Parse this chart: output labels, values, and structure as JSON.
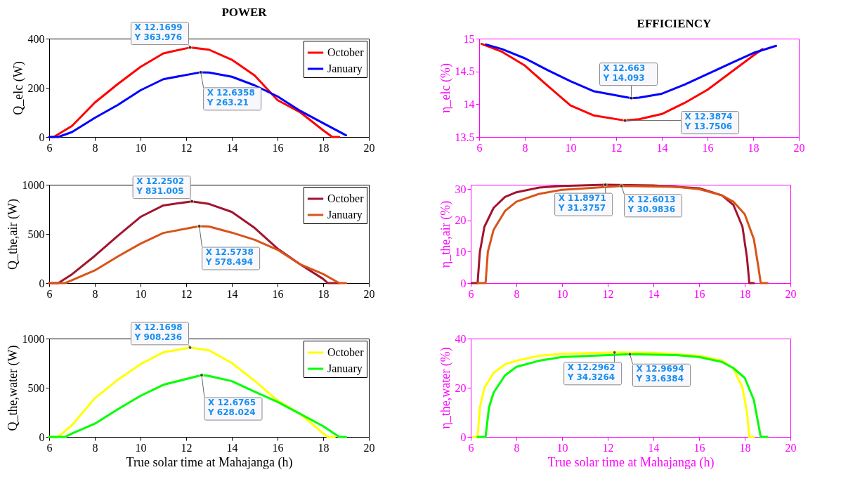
{
  "chart_data": [
    {
      "type": "line",
      "title": "POWER",
      "ylabel": "Q_elc (W)",
      "xlim": [
        6,
        20
      ],
      "xticks": [
        6,
        8,
        10,
        12,
        14,
        16,
        18,
        20
      ],
      "ylim": [
        0,
        400
      ],
      "yticks": [
        0,
        200,
        400
      ],
      "legend": "top right",
      "series": [
        {
          "name": "October",
          "color": "#ff0000",
          "x": [
            6,
            6.2,
            7,
            8,
            9,
            10,
            11,
            12.1699,
            13,
            14,
            15,
            16,
            17,
            18,
            18.4,
            18.7
          ],
          "values": [
            0,
            0,
            45,
            140,
            215,
            285,
            340,
            363.976,
            355,
            314,
            250,
            150,
            100,
            27,
            0,
            0
          ]
        },
        {
          "name": "January",
          "color": "#0000ff",
          "x": [
            6,
            6.4,
            7,
            8,
            9,
            10,
            11,
            12.6358,
            13,
            14,
            15,
            16,
            17,
            18,
            19
          ],
          "values": [
            0,
            0,
            20,
            78,
            130,
            190,
            235,
            263.21,
            262,
            245,
            210,
            165,
            106,
            56,
            7
          ]
        }
      ],
      "annotations": [
        {
          "text": "X 12.1699\nY 363.976",
          "x": 12.1699,
          "y": 363.976
        },
        {
          "text": "X 12.6358\nY 263.21",
          "x": 12.6358,
          "y": 263.21
        }
      ]
    },
    {
      "type": "line",
      "title": "EFFICIENCY",
      "ylabel": "η_elc (%)",
      "xlim": [
        6,
        20
      ],
      "xticks": [
        6,
        8,
        10,
        12,
        14,
        16,
        18,
        20
      ],
      "ylim": [
        13.5,
        15
      ],
      "yticks": [
        13.5,
        14,
        14.5,
        15
      ],
      "series": [
        {
          "color": "#ff0000",
          "x": [
            6.1,
            7,
            8,
            9,
            10,
            11,
            12.3874,
            13,
            14,
            15,
            16,
            17,
            18,
            18.4
          ],
          "values": [
            14.92,
            14.8,
            14.59,
            14.28,
            13.98,
            13.83,
            13.7506,
            13.77,
            13.85,
            14.02,
            14.22,
            14.48,
            14.74,
            14.84
          ]
        },
        {
          "color": "#0000ff",
          "x": [
            6.3,
            7,
            8,
            9,
            10,
            11,
            12.663,
            13,
            14,
            15,
            16,
            17,
            18,
            19
          ],
          "values": [
            14.91,
            14.84,
            14.7,
            14.52,
            14.35,
            14.2,
            14.093,
            14.1,
            14.16,
            14.3,
            14.46,
            14.62,
            14.78,
            14.89
          ]
        }
      ],
      "annotations": [
        {
          "text": "X 12.663\nY 14.093",
          "x": 12.663,
          "y": 14.093
        },
        {
          "text": "X 12.3874\nY 13.7506",
          "x": 12.3874,
          "y": 13.7506
        }
      ]
    },
    {
      "type": "line",
      "ylabel": "Q_the,air (W)",
      "xlim": [
        6,
        20
      ],
      "xticks": [
        6,
        8,
        10,
        12,
        14,
        16,
        18,
        20
      ],
      "ylim": [
        0,
        1000
      ],
      "yticks": [
        0,
        500,
        1000
      ],
      "legend": "top right",
      "series": [
        {
          "name": "October",
          "color": "#a2142f",
          "x": [
            6,
            6.4,
            7,
            8,
            9,
            10,
            11,
            12.2502,
            13,
            14,
            15,
            16,
            17,
            18,
            18.2,
            18.7
          ],
          "values": [
            0,
            0,
            90,
            277,
            480,
            673,
            790,
            831.005,
            805,
            723,
            560,
            351,
            190,
            42,
            0,
            0
          ]
        },
        {
          "name": "January",
          "color": "#d95319",
          "x": [
            6,
            6.7,
            7,
            8,
            9,
            10,
            11,
            12.5738,
            13,
            14,
            15,
            16,
            17,
            18,
            18.7,
            19
          ],
          "values": [
            0,
            0,
            30,
            129,
            270,
            401,
            510,
            578.494,
            575,
            513,
            440,
            339,
            190,
            92,
            0,
            0
          ]
        }
      ],
      "annotations": [
        {
          "text": "X 12.2502\nY 831.005",
          "x": 12.2502,
          "y": 831.005
        },
        {
          "text": "X 12.5738\nY 578.494",
          "x": 12.5738,
          "y": 578.494
        }
      ]
    },
    {
      "type": "line",
      "ylabel": "η_the,air (%)",
      "xlim": [
        6,
        20
      ],
      "xticks": [
        6,
        8,
        10,
        12,
        14,
        16,
        18,
        20
      ],
      "ylim": [
        0,
        31.4
      ],
      "yticks": [
        0,
        10,
        20,
        30
      ],
      "series": [
        {
          "color": "#a2142f",
          "x": [
            6.05,
            6.3,
            6.4,
            6.6,
            7,
            7.5,
            8,
            9,
            10,
            11.8971,
            14,
            16,
            17,
            17.5,
            17.9,
            18.1,
            18.2,
            18.4
          ],
          "values": [
            0,
            0,
            10,
            18,
            24,
            27.5,
            29,
            30.5,
            31,
            31.3757,
            31.2,
            30.3,
            28,
            25,
            18,
            8,
            0,
            0
          ]
        },
        {
          "color": "#d95319",
          "x": [
            6.3,
            6.65,
            6.75,
            7,
            7.5,
            8,
            9,
            10,
            12.6013,
            15,
            16,
            17,
            17.5,
            18,
            18.4,
            18.6,
            18.7,
            19
          ],
          "values": [
            0,
            0,
            10,
            17,
            23,
            26,
            28.5,
            29.8,
            30.9836,
            30.7,
            30,
            28,
            26,
            22,
            14,
            5,
            0,
            0
          ]
        }
      ],
      "annotations": [
        {
          "text": "X 11.8971\nY 31.3757",
          "x": 11.8971,
          "y": 31.3757
        },
        {
          "text": "X 12.6013\nY 30.9836",
          "x": 12.6013,
          "y": 30.9836
        }
      ]
    },
    {
      "type": "line",
      "ylabel": "Q_the,water (W)",
      "xlabel": "True solar time at Mahajanga (h)",
      "xlim": [
        6,
        20
      ],
      "xticks": [
        6,
        8,
        10,
        12,
        14,
        16,
        18,
        20
      ],
      "ylim": [
        0,
        1000
      ],
      "yticks": [
        0,
        500,
        1000
      ],
      "legend": "top right",
      "series": [
        {
          "name": "October",
          "color": "#ffff00",
          "x": [
            6,
            6.4,
            7,
            8,
            9,
            10,
            11,
            12.1698,
            13,
            14,
            15,
            16,
            17,
            18,
            18.2,
            18.5
          ],
          "values": [
            0,
            0,
            120,
            394,
            580,
            740,
            860,
            908.236,
            880,
            752,
            570,
            369,
            233,
            35,
            0,
            0
          ]
        },
        {
          "name": "January",
          "color": "#00ff00",
          "x": [
            6,
            6.7,
            7,
            8,
            9,
            10,
            11,
            12.6765,
            13,
            14,
            15,
            16,
            17,
            18,
            18.7,
            19
          ],
          "values": [
            0,
            0,
            35,
            134,
            280,
            418,
            530,
            628.024,
            620,
            567,
            460,
            356,
            233,
            109,
            0,
            0
          ]
        }
      ],
      "annotations": [
        {
          "text": "X 12.1698\nY 908.236",
          "x": 12.1698,
          "y": 908.236
        },
        {
          "text": "X 12.6765\nY 628.024",
          "x": 12.6765,
          "y": 628.024
        }
      ]
    },
    {
      "type": "line",
      "ylabel": "η_the,water (%)",
      "xlabel": "True solar time at Mahajanga (h)",
      "xlim": [
        6,
        20
      ],
      "xticks": [
        6,
        8,
        10,
        12,
        14,
        16,
        18,
        20
      ],
      "ylim": [
        0,
        40
      ],
      "yticks": [
        0,
        20,
        40
      ],
      "series": [
        {
          "color": "#ffff00",
          "x": [
            6.1,
            6.3,
            6.4,
            6.6,
            7,
            7.5,
            8,
            9,
            10,
            12.2962,
            14,
            16,
            17,
            17.5,
            17.9,
            18.1,
            18.2,
            18.4
          ],
          "values": [
            0,
            0,
            12,
            20,
            26,
            29.5,
            31,
            33,
            33.8,
            34.3264,
            34.2,
            33,
            31,
            28,
            20,
            10,
            0,
            0
          ]
        },
        {
          "color": "#00ff00",
          "x": [
            6.3,
            6.65,
            6.8,
            7,
            7.5,
            8,
            9,
            10,
            12.9694,
            15,
            16,
            17,
            17.5,
            18,
            18.4,
            18.6,
            18.7,
            19
          ],
          "values": [
            0,
            0,
            12,
            18,
            25,
            28.5,
            31,
            32.5,
            33.6384,
            33.3,
            32.5,
            30.5,
            28,
            24,
            15,
            5,
            0,
            0
          ]
        }
      ],
      "annotations": [
        {
          "text": "X 12.2962\nY 34.3264",
          "x": 12.2962,
          "y": 34.3264
        },
        {
          "text": "X 12.9694\nY 33.6384",
          "x": 12.9694,
          "y": 33.6384
        }
      ]
    }
  ]
}
